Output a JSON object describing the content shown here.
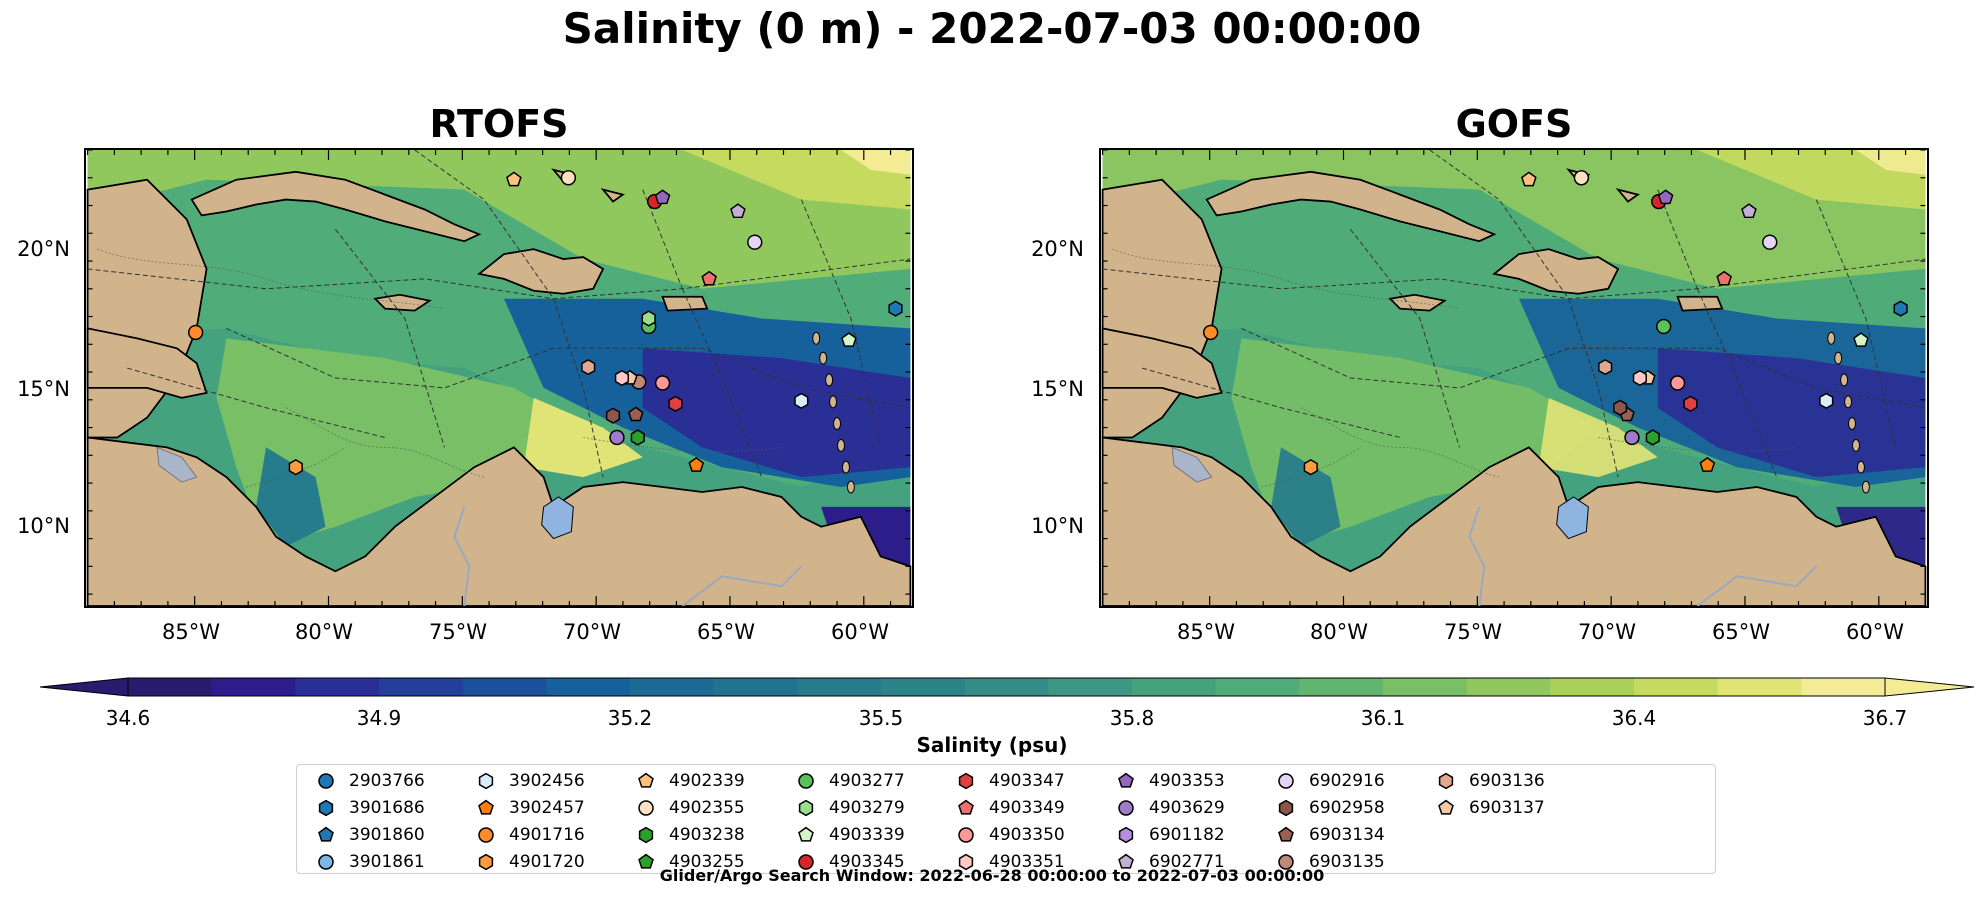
{
  "title": "Salinity (0 m) - 2022-07-03 00:00:00",
  "panels": [
    {
      "title": "RTOFS"
    },
    {
      "title": "GOFS"
    }
  ],
  "lat_labels": [
    "20°N",
    "15°N",
    "10°N"
  ],
  "lon_labels": [
    "85°W",
    "80°W",
    "75°W",
    "70°W",
    "65°W",
    "60°W"
  ],
  "colorbar": {
    "label": "Salinity (psu)",
    "min": 34.6,
    "max": 36.7,
    "step": 0.1,
    "ticks": [
      "34.6",
      "34.9",
      "35.2",
      "35.5",
      "35.8",
      "36.1",
      "36.4",
      "36.7"
    ],
    "colors": [
      "#2a1b6e",
      "#2d1d8a",
      "#2a2f96",
      "#243f9a",
      "#1b509c",
      "#16609c",
      "#1b6b94",
      "#217390",
      "#267c8c",
      "#2b8588",
      "#328e86",
      "#3a9884",
      "#44a27f",
      "#50ac78",
      "#62b56f",
      "#78bf66",
      "#91c85e",
      "#aad15a",
      "#c5da5f",
      "#e0e375",
      "#f3ec94"
    ]
  },
  "land_color": "#d2b48c",
  "lake_color": "#8fb4e0",
  "legend": [
    {
      "id": "2903766",
      "color": "#1f77b4",
      "marker": "circle"
    },
    {
      "id": "3901686",
      "color": "#1f77b4",
      "marker": "hexagon"
    },
    {
      "id": "3901860",
      "color": "#1f77b4",
      "marker": "pentagon"
    },
    {
      "id": "3901861",
      "color": "#7fb6e6",
      "marker": "circle"
    },
    {
      "id": "3902456",
      "color": "#d9ecf7",
      "marker": "hexagon"
    },
    {
      "id": "3902457",
      "color": "#ff7f0e",
      "marker": "pentagon"
    },
    {
      "id": "4901716",
      "color": "#ff8c2a",
      "marker": "circle"
    },
    {
      "id": "4901720",
      "color": "#ff9c3f",
      "marker": "hexagon"
    },
    {
      "id": "4902339",
      "color": "#ffc080",
      "marker": "pentagon"
    },
    {
      "id": "4902355",
      "color": "#ffe0c0",
      "marker": "circle"
    },
    {
      "id": "4903238",
      "color": "#2ca02c",
      "marker": "hexagon"
    },
    {
      "id": "4903255",
      "color": "#2ca02c",
      "marker": "pentagon"
    },
    {
      "id": "4903277",
      "color": "#5cc05c",
      "marker": "circle"
    },
    {
      "id": "4903279",
      "color": "#98df8a",
      "marker": "hexagon"
    },
    {
      "id": "4903339",
      "color": "#d4f5c8",
      "marker": "pentagon"
    },
    {
      "id": "4903345",
      "color": "#d62728",
      "marker": "circle"
    },
    {
      "id": "4903347",
      "color": "#e04040",
      "marker": "hexagon"
    },
    {
      "id": "4903349",
      "color": "#f07070",
      "marker": "pentagon"
    },
    {
      "id": "4903350",
      "color": "#ff9896",
      "marker": "circle"
    },
    {
      "id": "4903351",
      "color": "#ffc8c6",
      "marker": "hexagon"
    },
    {
      "id": "4903353",
      "color": "#9467bd",
      "marker": "pentagon"
    },
    {
      "id": "4903629",
      "color": "#a07acb",
      "marker": "circle"
    },
    {
      "id": "6901182",
      "color": "#b58ee0",
      "marker": "hexagon"
    },
    {
      "id": "6902771",
      "color": "#c5b0d5",
      "marker": "pentagon"
    },
    {
      "id": "6902916",
      "color": "#e6d4f5",
      "marker": "circle"
    },
    {
      "id": "6902958",
      "color": "#8c564b",
      "marker": "hexagon"
    },
    {
      "id": "6903134",
      "color": "#9c6050",
      "marker": "pentagon"
    },
    {
      "id": "6903135",
      "color": "#c08878",
      "marker": "circle"
    },
    {
      "id": "6903136",
      "color": "#e0a890",
      "marker": "hexagon"
    },
    {
      "id": "6903137",
      "color": "#f5c8a8",
      "marker": "pentagon"
    }
  ],
  "search_window": "Glider/Argo Search Window: 2022-06-28 00:00:00 to 2022-07-03 00:00:00"
}
